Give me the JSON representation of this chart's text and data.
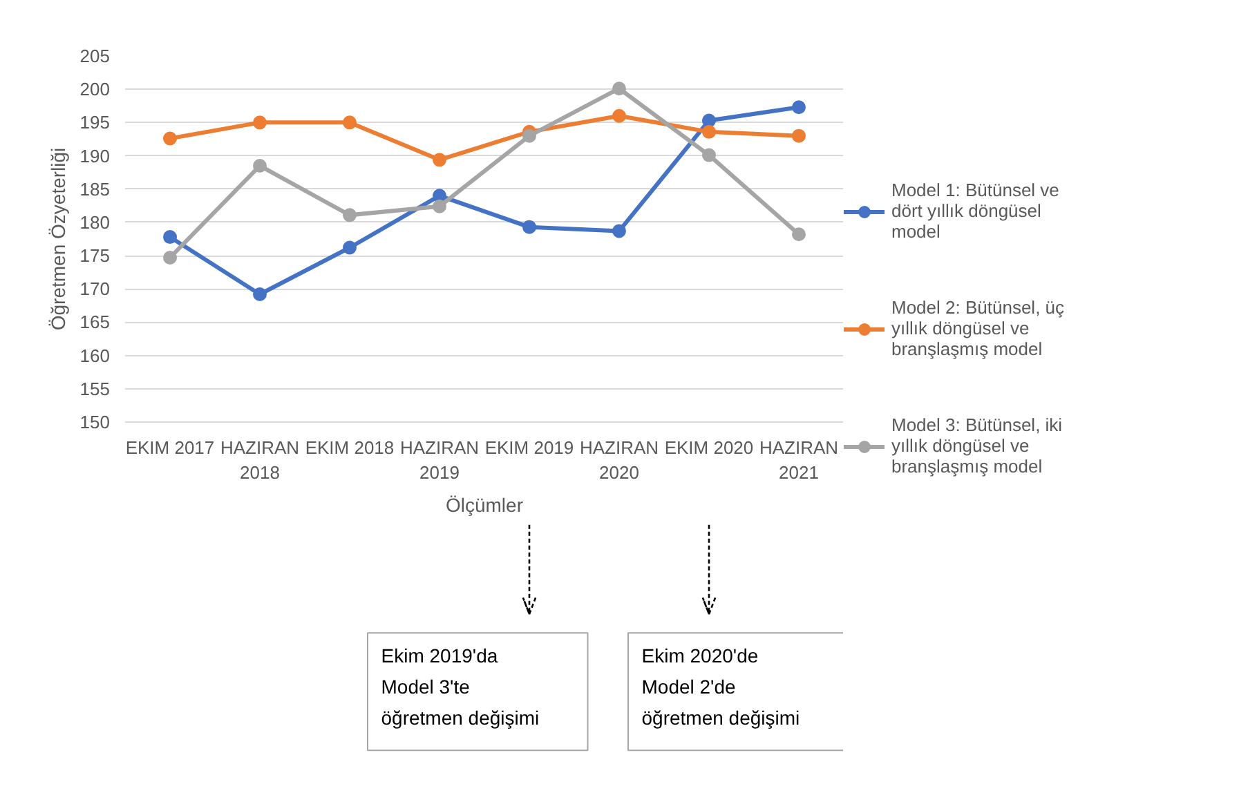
{
  "chart_data": {
    "type": "line",
    "ylabel": "Öğretmen Özyeterliği",
    "xlabel": "Ölçümler",
    "categories": [
      "EKIM 2017",
      "HAZIRAN 2018",
      "EKIM 2018",
      "HAZIRAN 2019",
      "EKIM 2019",
      "HAZIRAN 2020",
      "EKIM 2020",
      "HAZIRAN 2021"
    ],
    "series": [
      {
        "name": "Model 1: Bütünsel ve dört yıllık döngüsel model",
        "color": "#4472c4",
        "values": [
          177.8,
          169.2,
          176.2,
          184.0,
          179.3,
          178.7,
          195.3,
          197.3
        ]
      },
      {
        "name": "Model 2: Bütünsel, üç yıllık döngüsel ve branşlaşmış model",
        "color": "#ed7d31",
        "values": [
          192.6,
          195.0,
          195.0,
          189.4,
          193.6,
          196.0,
          193.6,
          193.0
        ]
      },
      {
        "name": "Model 3: Bütünsel, iki yıllık döngüsel ve branşlaşmış model",
        "color": "#a5a5a5",
        "values": [
          174.7,
          188.5,
          181.1,
          182.4,
          193.0,
          200.1,
          190.1,
          178.2
        ]
      }
    ],
    "ylim": [
      150,
      205
    ],
    "yticks": [
      150,
      155,
      160,
      165,
      170,
      175,
      180,
      185,
      190,
      195,
      200,
      205
    ],
    "grid": "y",
    "legend": "right",
    "marker": "circle",
    "line_style": "solid",
    "annotations": [
      "Ekim 2019'da\nModel 3'te\nöğretmen değişimi",
      "Ekim 2020'de\nModel 2'de\nöğretmen değişimi"
    ]
  }
}
